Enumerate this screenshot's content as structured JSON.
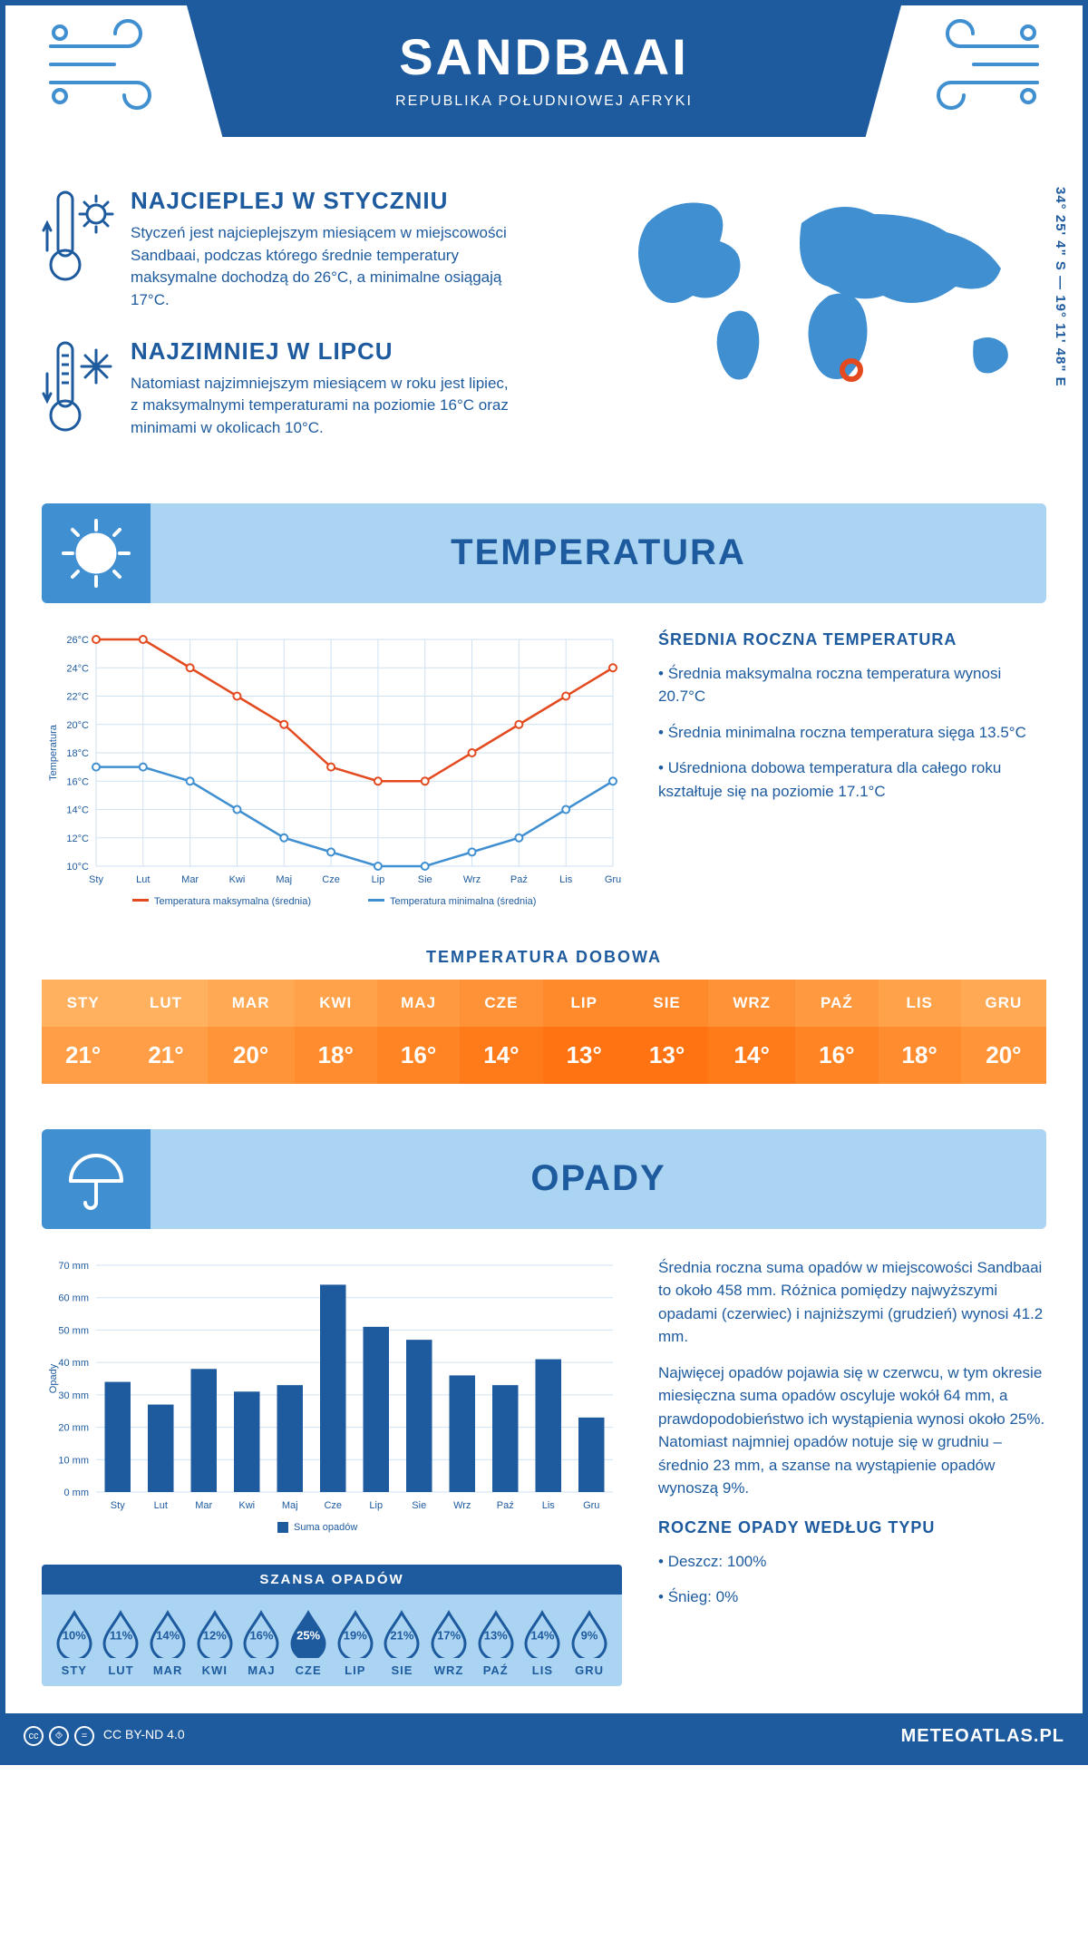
{
  "colors": {
    "primary": "#1d5a9e",
    "light_blue": "#aad4f1",
    "mid_blue": "#3f8fd1",
    "map_fill": "#3f8fd1",
    "marker": "#e34a1f",
    "line_max": "#e34a1f",
    "line_min": "#3f8fd1",
    "bar_fill": "#1d5a9e",
    "grid": "#cfe2f2",
    "white": "#ffffff"
  },
  "header": {
    "title": "SANDBAAI",
    "subtitle": "REPUBLIKA POŁUDNIOWEJ AFRYKI"
  },
  "coords": "34° 25' 4\" S — 19° 11' 48\" E",
  "intro": {
    "warm": {
      "title": "NAJCIEPLEJ W STYCZNIU",
      "text": "Styczeń jest najcieplejszym miesiącem w miejscowości Sandbaai, podczas którego średnie temperatury maksymalne dochodzą do 26°C, a minimalne osiągają 17°C."
    },
    "cold": {
      "title": "NAJZIMNIEJ W LIPCU",
      "text": "Natomiast najzimniejszym miesiącem w roku jest lipiec, z maksymalnymi temperaturami na poziomie 16°C oraz minimami w okolicach 10°C."
    }
  },
  "sections": {
    "temperature": "TEMPERATURA",
    "precip": "OPADY"
  },
  "months_short": [
    "Sty",
    "Lut",
    "Mar",
    "Kwi",
    "Maj",
    "Cze",
    "Lip",
    "Sie",
    "Wrz",
    "Paź",
    "Lis",
    "Gru"
  ],
  "months_upper": [
    "STY",
    "LUT",
    "MAR",
    "KWI",
    "MAJ",
    "CZE",
    "LIP",
    "SIE",
    "WRZ",
    "PAŹ",
    "LIS",
    "GRU"
  ],
  "temp_chart": {
    "type": "line",
    "ylabel": "Temperatura",
    "ylim": [
      10,
      26
    ],
    "ytick_step": 2,
    "series": [
      {
        "name": "Temperatura maksymalna (średnia)",
        "color": "#e34a1f",
        "values": [
          26,
          26,
          24,
          22,
          20,
          17,
          16,
          16,
          18,
          20,
          22,
          24
        ]
      },
      {
        "name": "Temperatura minimalna (średnia)",
        "color": "#3f8fd1",
        "values": [
          17,
          17,
          16,
          14,
          12,
          11,
          10,
          10,
          11,
          12,
          14,
          16
        ]
      }
    ],
    "legend_max": "Temperatura maksymalna (średnia)",
    "legend_min": "Temperatura minimalna (średnia)",
    "label_fontsize": 11,
    "grid_color": "#cfe2f2",
    "background_color": "#ffffff"
  },
  "temp_side": {
    "heading": "ŚREDNIA ROCZNA TEMPERATURA",
    "bullets": [
      "Średnia maksymalna roczna temperatura wynosi 20.7°C",
      "Średnia minimalna roczna temperatura sięga 13.5°C",
      "Uśredniona dobowa temperatura dla całego roku kształtuje się na poziomie 17.1°C"
    ]
  },
  "daily": {
    "title": "TEMPERATURA DOBOWA",
    "values": [
      "21°",
      "21°",
      "20°",
      "18°",
      "16°",
      "14°",
      "13°",
      "13°",
      "14°",
      "16°",
      "18°",
      "20°"
    ],
    "header_colors": [
      "#ffb160",
      "#ffb160",
      "#ffa954",
      "#ffa24a",
      "#ff9a40",
      "#ff9236",
      "#ff8a2c",
      "#ff8a2c",
      "#ff9236",
      "#ff9a40",
      "#ffa24a",
      "#ffa954"
    ],
    "value_colors": [
      "#ff9e46",
      "#ff9e46",
      "#ff9538",
      "#ff8c2e",
      "#ff8424",
      "#ff7b1a",
      "#ff7312",
      "#ff7312",
      "#ff7b1a",
      "#ff8424",
      "#ff8c2e",
      "#ff9538"
    ]
  },
  "precip_chart": {
    "type": "bar",
    "ylabel": "Opady",
    "ylim": [
      0,
      70
    ],
    "ytick_step": 10,
    "values": [
      34,
      27,
      38,
      31,
      33,
      64,
      51,
      47,
      36,
      33,
      41,
      23
    ],
    "bar_color": "#1d5a9e",
    "legend": "Suma opadów",
    "grid_color": "#cfe2f2",
    "background_color": "#ffffff",
    "bar_width": 0.6
  },
  "precip_side": {
    "para1": "Średnia roczna suma opadów w miejscowości Sandbaai to około 458 mm. Różnica pomiędzy najwyższymi opadami (czerwiec) i najniższymi (grudzień) wynosi 41.2 mm.",
    "para2": "Najwięcej opadów pojawia się w czerwcu, w tym okresie miesięczna suma opadów oscyluje wokół 64 mm, a prawdopodobieństwo ich wystąpienia wynosi około 25%. Natomiast najmniej opadów notuje się w grudniu – średnio 23 mm, a szanse na wystąpienie opadów wynoszą 9%.",
    "type_heading": "ROCZNE OPADY WEDŁUG TYPU",
    "type_bullets": [
      "Deszcz: 100%",
      "Śnieg: 0%"
    ]
  },
  "chance": {
    "title": "SZANSA OPADÓW",
    "values": [
      10,
      11,
      14,
      12,
      16,
      25,
      19,
      21,
      17,
      13,
      14,
      9
    ],
    "max_index": 5,
    "fill_color": "#1d5a9e",
    "outline_color": "#1d5a9e"
  },
  "footer": {
    "license": "CC BY-ND 4.0",
    "brand": "METEOATLAS.PL"
  }
}
